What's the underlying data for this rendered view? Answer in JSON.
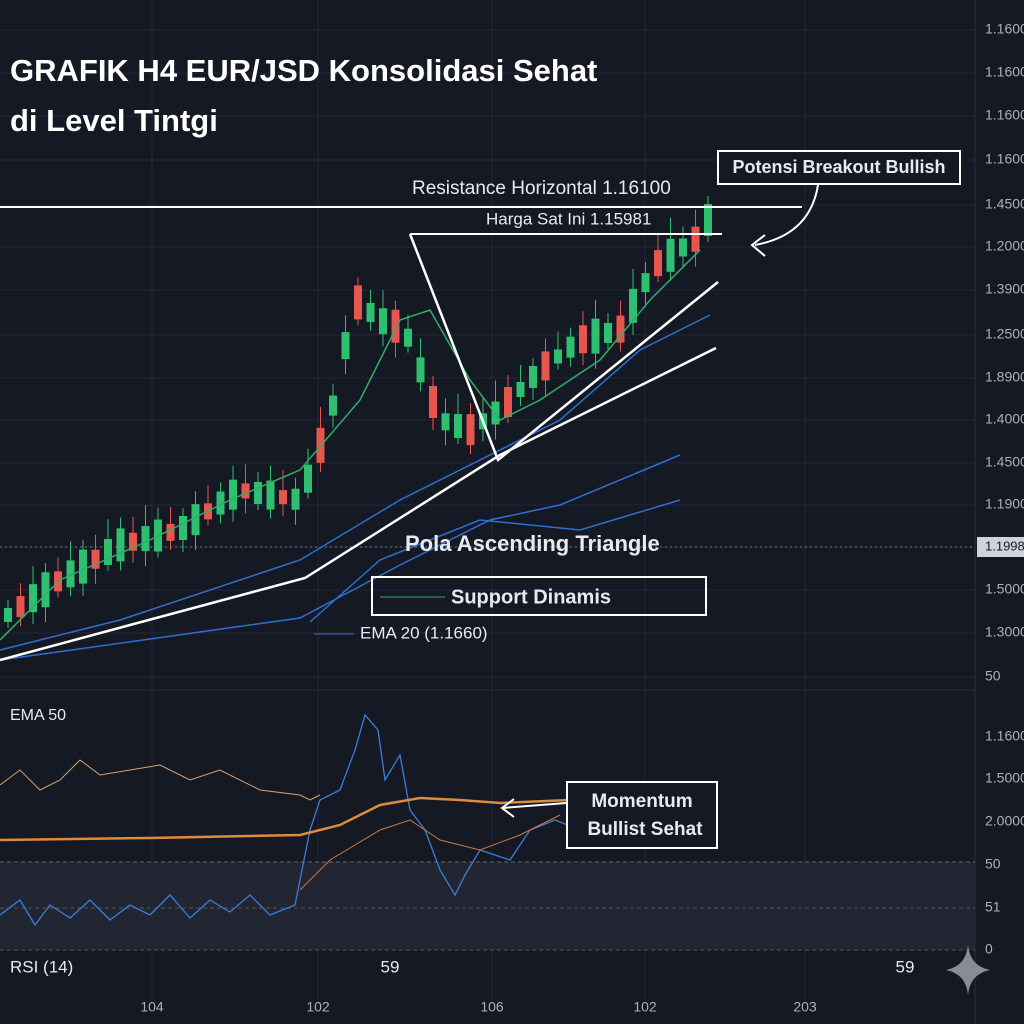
{
  "header": {
    "title": [
      "GRAFIK H4 EUR/JSD Konsolidasi Sehat",
      "di Level Tintgi"
    ]
  },
  "annotations": {
    "resistance": "Resistance Horizontal 1.16100",
    "current_price": "Harga Sat Ini 1.15981",
    "breakout": "Potensi Breakout Bullish",
    "pattern": "Pola Ascending Triangle",
    "support": "Support Dinamis",
    "ema20": "EMA 20 (1.1660)",
    "ema50": "EMA 50",
    "momentum": [
      "Momentum",
      "Bullist Sehat"
    ],
    "rsi": "RSI (14)"
  },
  "price_axis": [
    "1.1600",
    "1.1600",
    "1.1600",
    "1.1600",
    "1.4500",
    "1.2000",
    "1.3900",
    "1.2500",
    "1.8900",
    "1.4000",
    "1.4500",
    "1.1900",
    "1.1998",
    "1.5000",
    "1.3000",
    "50"
  ],
  "rsi_axis": [
    "1.1600",
    "1.5000",
    "2.0000",
    "50",
    "51",
    "0"
  ],
  "time_axis": [
    "104",
    "102",
    "106",
    "102",
    "203"
  ],
  "pane_labels": [
    "59",
    "59"
  ]
}
